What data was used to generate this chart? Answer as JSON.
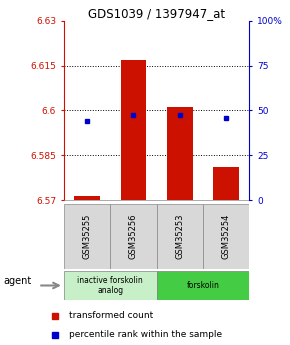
{
  "title": "GDS1039 / 1397947_at",
  "samples": [
    "GSM35255",
    "GSM35256",
    "GSM35253",
    "GSM35254"
  ],
  "bar_base": 6.57,
  "bar_tops": [
    6.5715,
    6.617,
    6.601,
    6.581
  ],
  "percentile_values": [
    44.0,
    47.5,
    47.5,
    45.5
  ],
  "ylim_left": [
    6.57,
    6.63
  ],
  "ylim_right": [
    0,
    100
  ],
  "yticks_left": [
    6.57,
    6.585,
    6.6,
    6.615,
    6.63
  ],
  "yticks_right": [
    0,
    25,
    50,
    75,
    100
  ],
  "ytick_labels_left": [
    "6.57",
    "6.585",
    "6.6",
    "6.615",
    "6.63"
  ],
  "ytick_labels_right": [
    "0",
    "25",
    "50",
    "75",
    "100%"
  ],
  "hlines": [
    6.585,
    6.6,
    6.615
  ],
  "groups": [
    {
      "label": "inactive forskolin\nanalog",
      "samples": [
        0,
        1
      ],
      "color": "#c8f0c8"
    },
    {
      "label": "forskolin",
      "samples": [
        2,
        3
      ],
      "color": "#44cc44"
    }
  ],
  "bar_color": "#cc1100",
  "point_color": "#0000cc",
  "agent_label": "agent",
  "legend_bar_label": "transformed count",
  "legend_point_label": "percentile rank within the sample",
  "bar_width": 0.55,
  "background_color": "#ffffff",
  "plot_bg": "#ffffff",
  "tick_color_left": "#cc1100",
  "tick_color_right": "#0000cc",
  "sample_box_color": "#d8d8d8",
  "sample_box_edge": "#888888"
}
